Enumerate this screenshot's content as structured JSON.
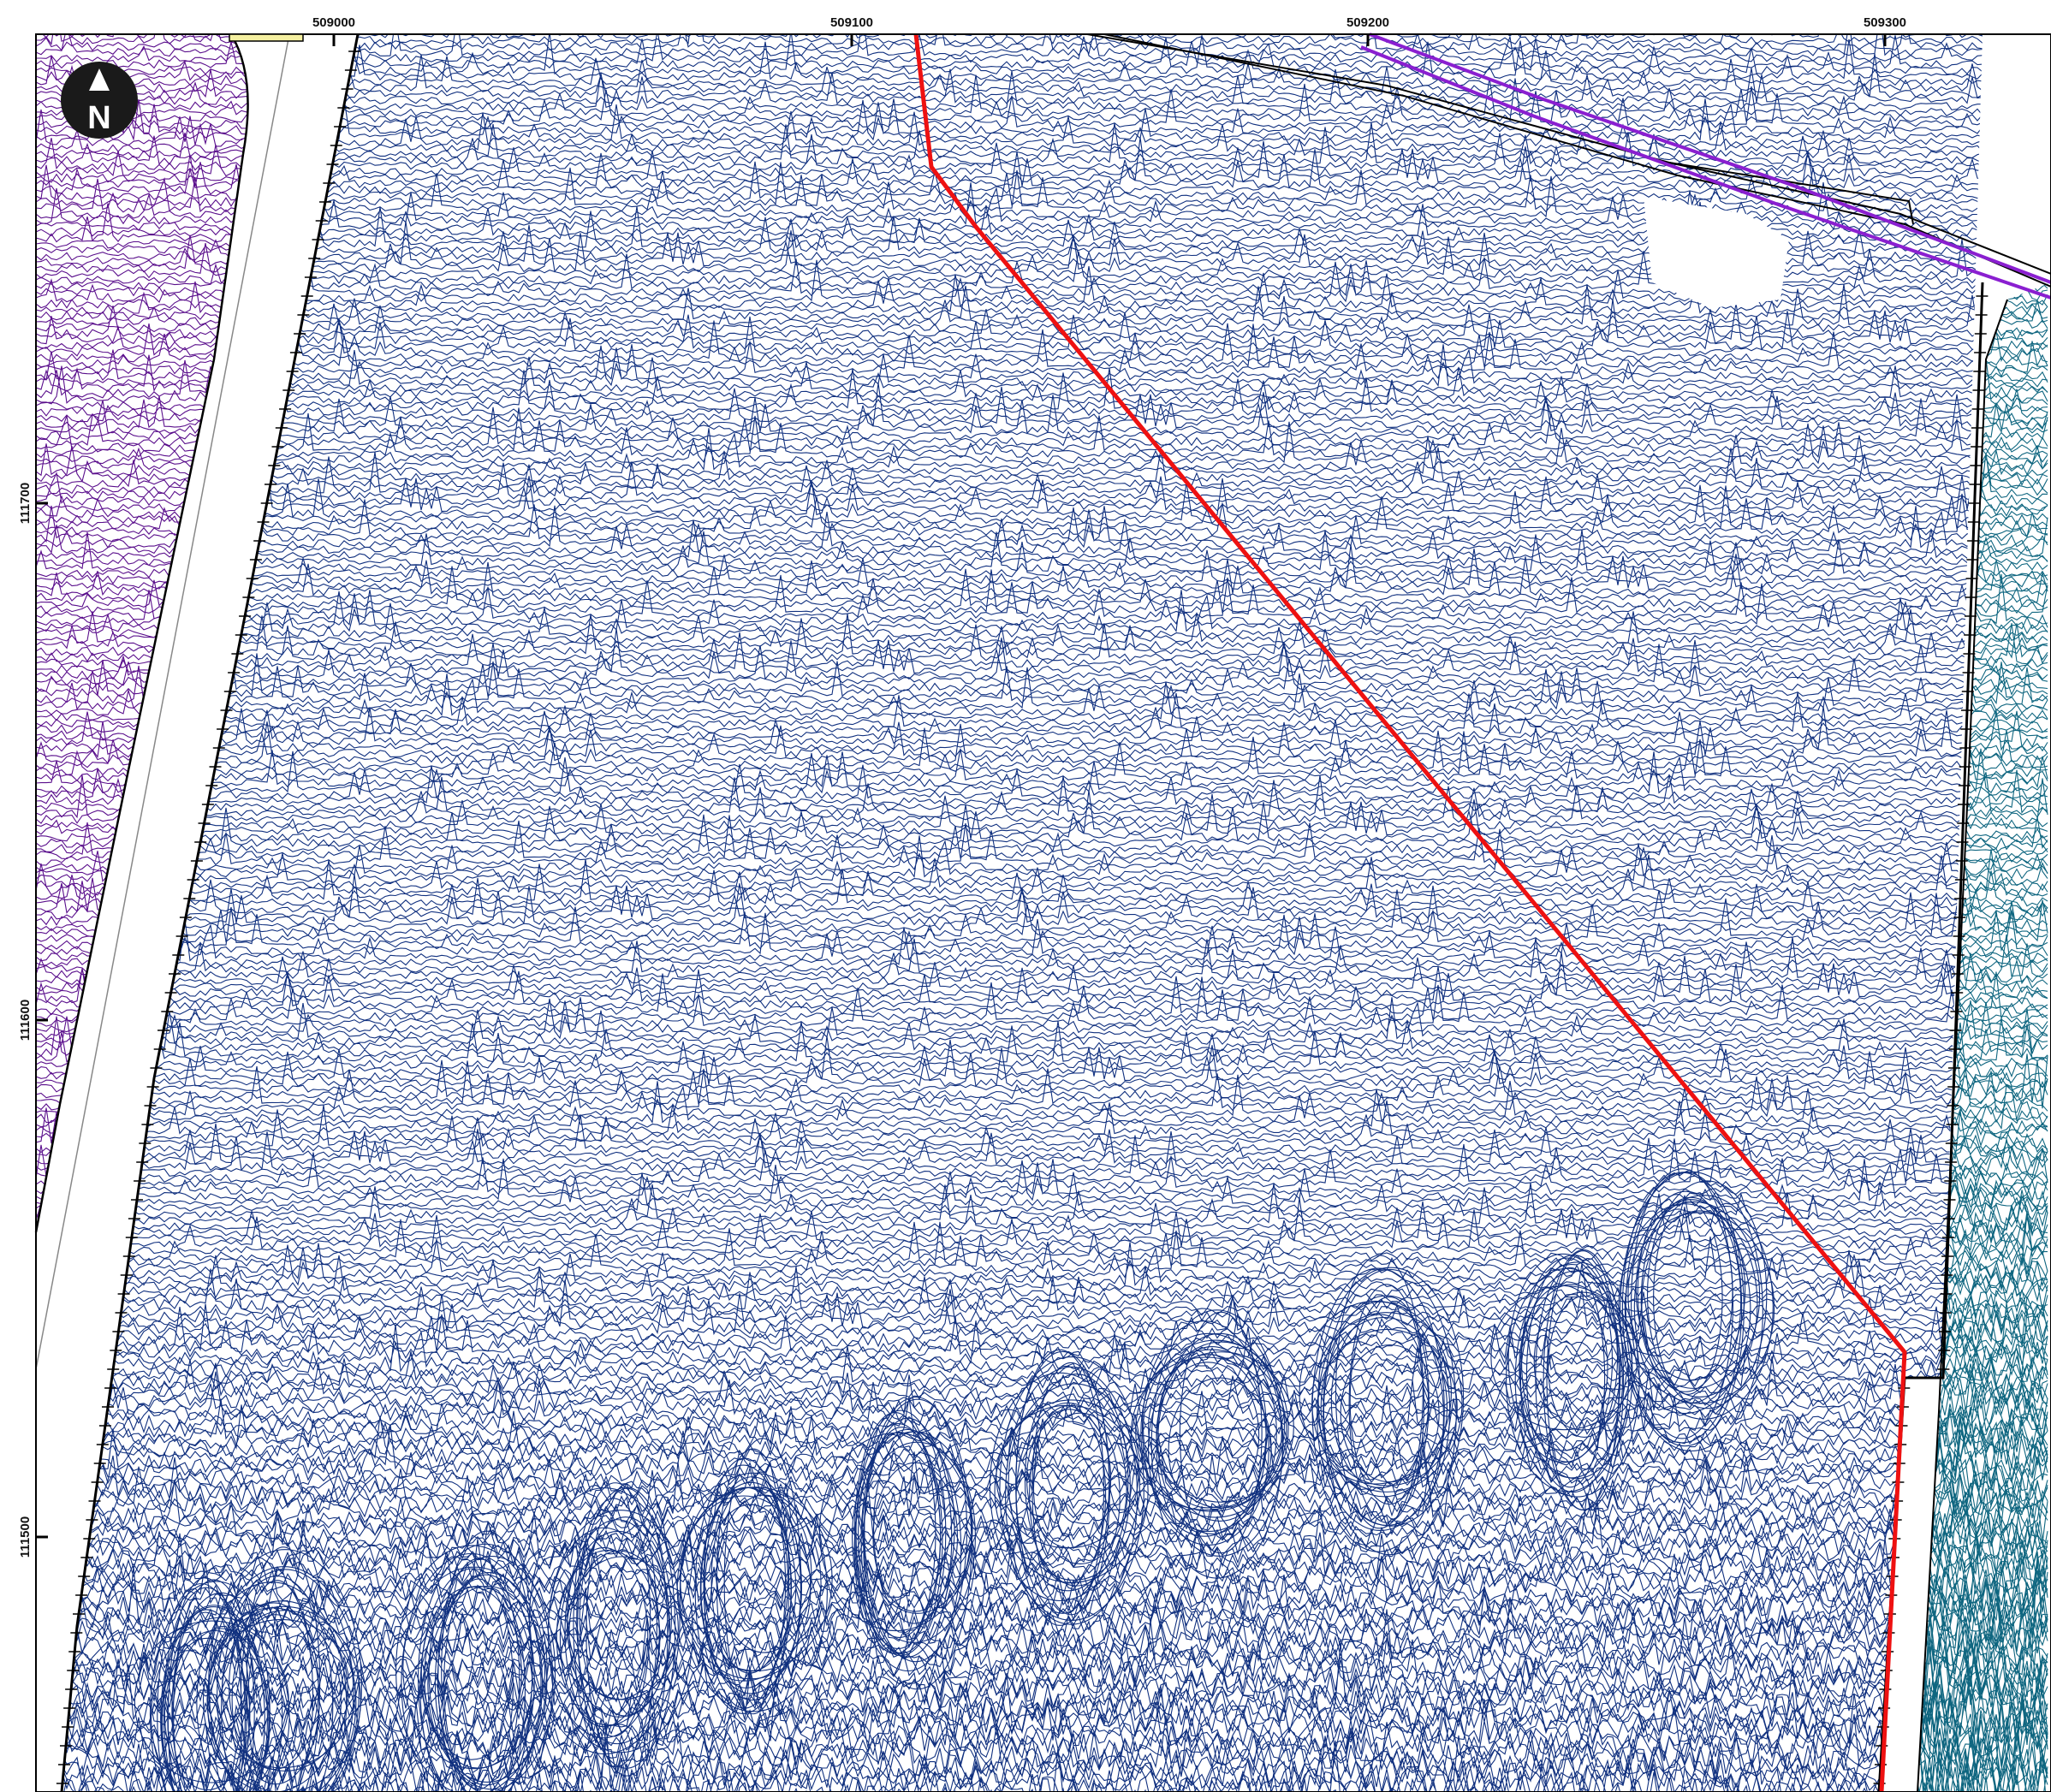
{
  "map": {
    "north_arrow": {
      "letter": "N",
      "icon": "north-arrow-icon"
    },
    "easting_ticks": [
      "509000",
      "509100",
      "509200",
      "509300"
    ],
    "northing_ticks": [
      "111700",
      "111600",
      "111500"
    ],
    "colors": {
      "frame": "#000000",
      "survey_blue": "#10307f",
      "survey_purple": "#5a0f8c",
      "survey_teal": "#0f6680",
      "route_red": "#ee1111",
      "pipeline_purple": "#8a1fd0",
      "scale_box": "#f5f0a0"
    },
    "layers": [
      "survey-traces-blue",
      "survey-traces-purple",
      "survey-traces-teal",
      "red-route-line",
      "purple-pipeline",
      "black-boundary"
    ]
  }
}
